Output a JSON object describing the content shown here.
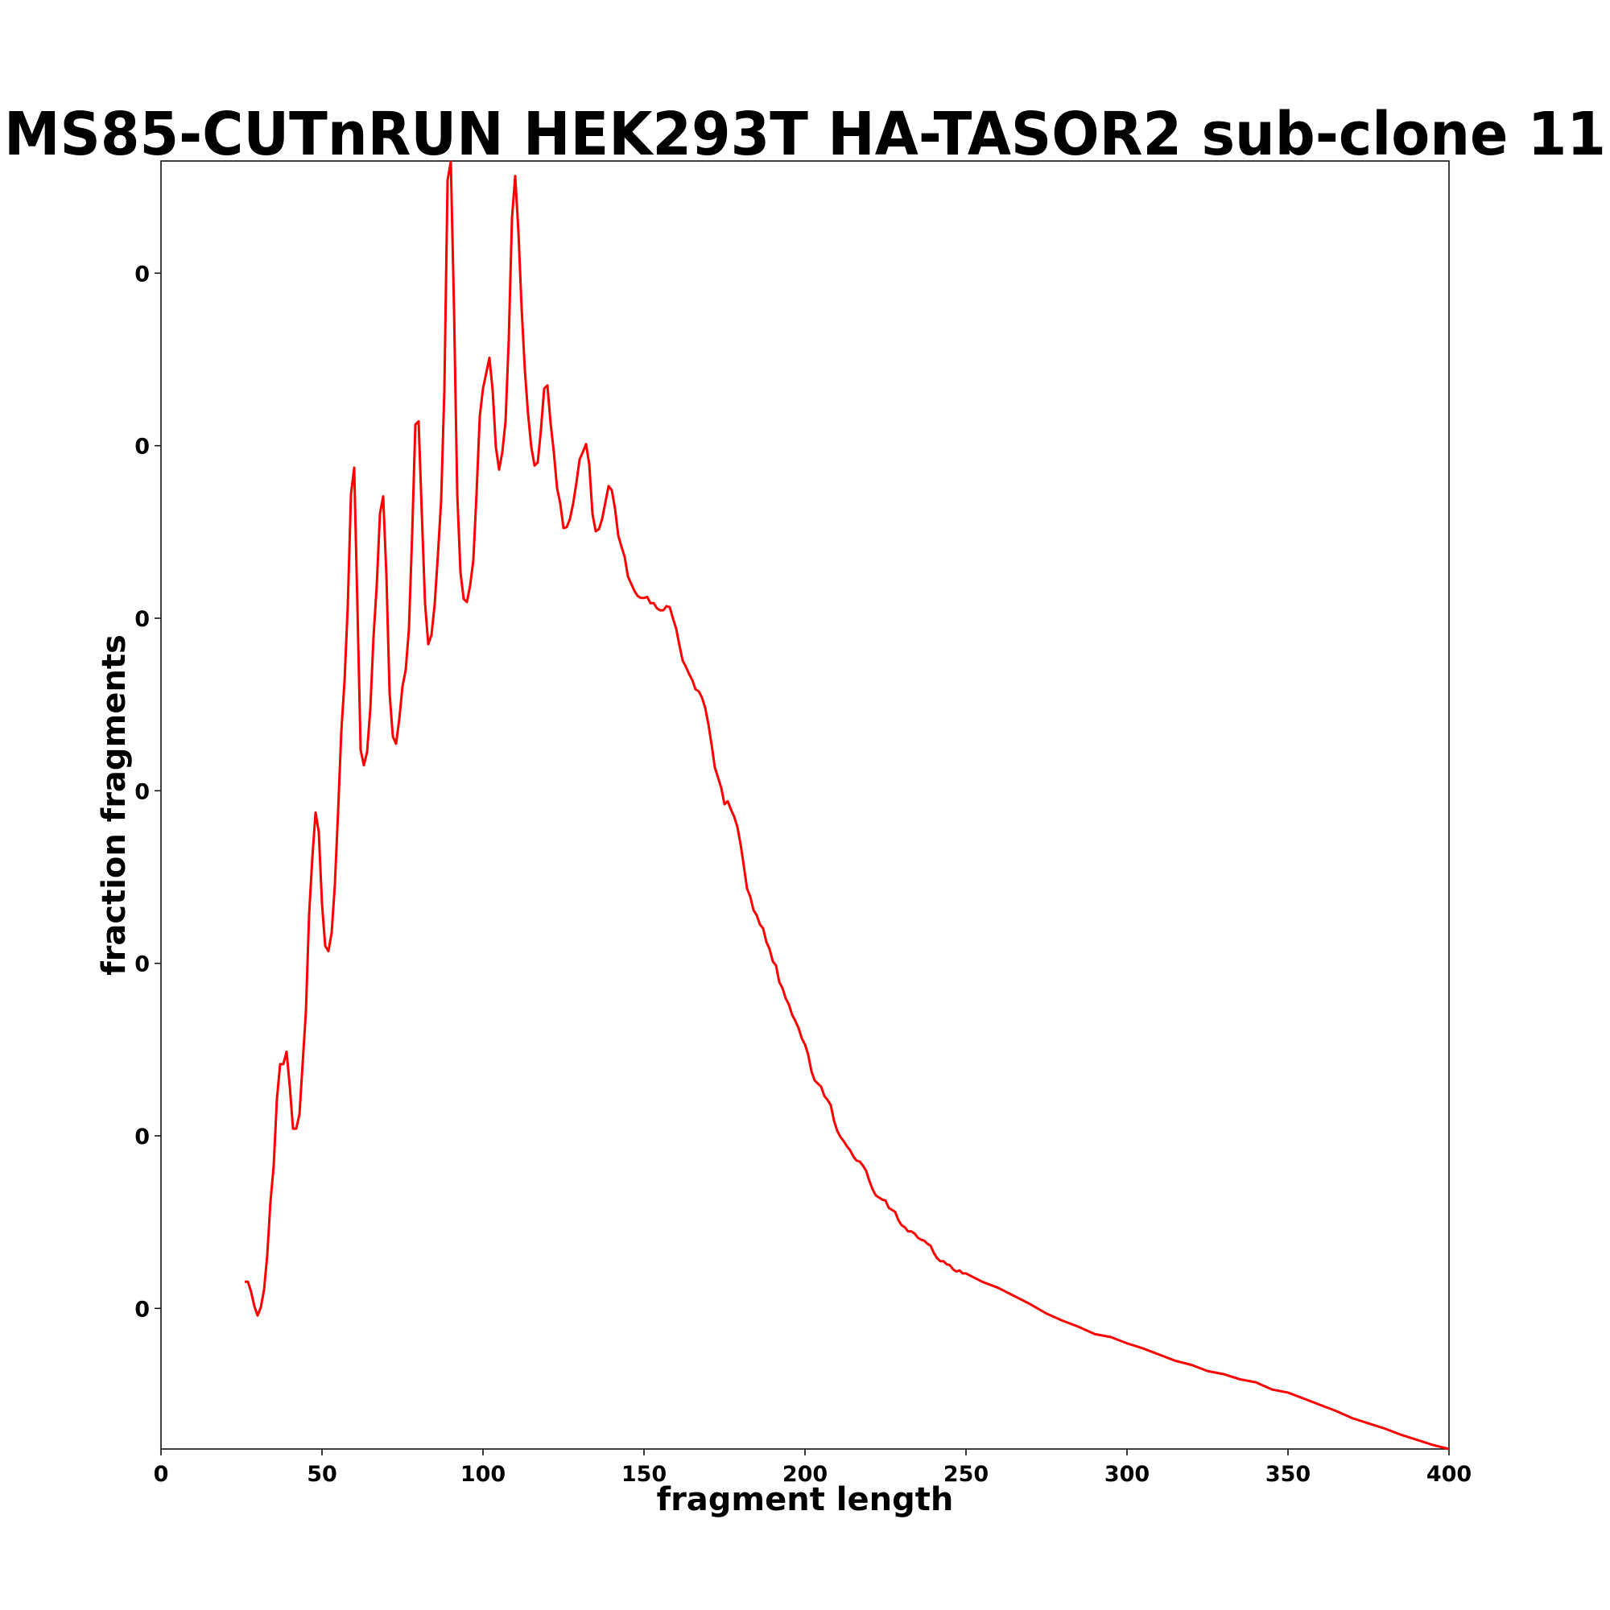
{
  "chart_data": {
    "type": "line",
    "title": "MS85-CUTnRUN HEK293T HA-TASOR2 sub-clone 11",
    "xlabel": "fragment length",
    "ylabel": "fraction fragments",
    "xlim": [
      0,
      400
    ],
    "xticks": [
      0,
      50,
      100,
      150,
      200,
      250,
      300,
      350,
      400
    ],
    "ylim": [
      -0.00163,
      0.0133
    ],
    "yticks": [
      {
        "value": 0,
        "label": "0"
      },
      {
        "value": 0.002,
        "label": "0"
      },
      {
        "value": 0.004,
        "label": "0"
      },
      {
        "value": 0.006,
        "label": "0"
      },
      {
        "value": 0.008,
        "label": "0"
      },
      {
        "value": 0.01,
        "label": "0"
      },
      {
        "value": 0.012,
        "label": "0"
      }
    ],
    "series": [
      {
        "color": "#ff0000",
        "x": [
          26,
          27,
          28,
          29,
          30,
          31,
          32,
          33,
          34,
          35,
          36,
          37,
          38,
          39,
          40,
          41,
          42,
          43,
          44,
          45,
          46,
          47,
          48,
          49,
          50,
          51,
          52,
          53,
          54,
          55,
          56,
          57,
          58,
          59,
          60,
          61,
          62,
          63,
          64,
          65,
          66,
          67,
          68,
          69,
          70,
          71,
          72,
          73,
          74,
          75,
          76,
          77,
          78,
          79,
          80,
          81,
          82,
          83,
          84,
          85,
          86,
          87,
          88,
          89,
          90,
          91,
          92,
          93,
          94,
          95,
          96,
          97,
          98,
          99,
          100,
          101,
          102,
          103,
          104,
          105,
          106,
          107,
          108,
          109,
          110,
          111,
          112,
          113,
          114,
          115,
          116,
          117,
          118,
          119,
          120,
          121,
          122,
          123,
          124,
          125,
          126,
          127,
          128,
          129,
          130,
          131,
          132,
          133,
          134,
          135,
          136,
          137,
          138,
          139,
          140,
          141,
          142,
          143,
          144,
          145,
          146,
          147,
          148,
          149,
          150,
          151,
          152,
          153,
          154,
          155,
          156,
          157,
          158,
          159,
          160,
          161,
          162,
          163,
          164,
          165,
          166,
          167,
          168,
          169,
          170,
          171,
          172,
          173,
          174,
          175,
          176,
          177,
          178,
          179,
          180,
          181,
          182,
          183,
          184,
          185,
          186,
          187,
          188,
          189,
          190,
          191,
          192,
          193,
          194,
          195,
          196,
          197,
          198,
          199,
          200,
          201,
          202,
          203,
          204,
          205,
          206,
          207,
          208,
          209,
          210,
          211,
          212,
          213,
          214,
          215,
          216,
          217,
          218,
          219,
          220,
          221,
          222,
          223,
          224,
          225,
          226,
          227,
          228,
          229,
          230,
          231,
          232,
          233,
          234,
          235,
          236,
          237,
          238,
          239,
          240,
          241,
          242,
          243,
          244,
          245,
          246,
          247,
          248,
          249,
          250,
          255,
          260,
          265,
          270,
          275,
          280,
          285,
          290,
          295,
          300,
          305,
          310,
          315,
          320,
          325,
          330,
          335,
          340,
          345,
          350,
          355,
          360,
          365,
          370,
          375,
          380,
          385,
          390,
          395,
          400
        ],
        "values": [
          0.000309,
          0.000309,
          0.00019,
          2.4e-05,
          -8.3e-05,
          1.2e-05,
          0.000214,
          0.000619,
          0.001238,
          0.001654,
          0.002428,
          0.002832,
          0.002832,
          0.002975,
          0.00257,
          0.002083,
          0.002083,
          0.002249,
          0.002844,
          0.003439,
          0.00457,
          0.005224,
          0.005748,
          0.005522,
          0.004689,
          0.004201,
          0.004141,
          0.004355,
          0.004915,
          0.00576,
          0.006688,
          0.007271,
          0.00814,
          0.009437,
          0.009746,
          0.00814,
          0.006474,
          0.006295,
          0.00645,
          0.00695,
          0.007783,
          0.008378,
          0.009211,
          0.009413,
          0.008497,
          0.007128,
          0.006628,
          0.006545,
          0.006831,
          0.007211,
          0.007402,
          0.007878,
          0.008973,
          0.010246,
          0.010282,
          0.009211,
          0.008175,
          0.007699,
          0.007806,
          0.008163,
          0.008735,
          0.009365,
          0.010639,
          0.013078,
          0.013292,
          0.011591,
          0.009449,
          0.008532,
          0.008223,
          0.008187,
          0.008378,
          0.008675,
          0.009449,
          0.010341,
          0.010662,
          0.010841,
          0.011019,
          0.010639,
          0.009984,
          0.009722,
          0.009925,
          0.010282,
          0.011234,
          0.012638,
          0.013126,
          0.012483,
          0.011591,
          0.010877,
          0.010365,
          0.009984,
          0.00977,
          0.009806,
          0.010186,
          0.010662,
          0.010698,
          0.010258,
          0.009925,
          0.009508,
          0.00933,
          0.009044,
          0.009056,
          0.009151,
          0.00933,
          0.009568,
          0.009841,
          0.009925,
          0.01002,
          0.009782,
          0.009211,
          0.009008,
          0.009032,
          0.009151,
          0.009342,
          0.009532,
          0.009484,
          0.00927,
          0.008961,
          0.00883,
          0.008711,
          0.008485,
          0.008401,
          0.008318,
          0.008259,
          0.008235,
          0.008235,
          0.008247,
          0.008175,
          0.008175,
          0.008116,
          0.008092,
          0.008092,
          0.00814,
          0.008128,
          0.007997,
          0.007878,
          0.007687,
          0.007509,
          0.007438,
          0.007354,
          0.007283,
          0.007176,
          0.007152,
          0.007081,
          0.006962,
          0.006771,
          0.006533,
          0.006271,
          0.006152,
          0.006033,
          0.005843,
          0.005879,
          0.005783,
          0.0057,
          0.005581,
          0.005379,
          0.005129,
          0.004867,
          0.004772,
          0.004617,
          0.004558,
          0.004451,
          0.004403,
          0.004248,
          0.004165,
          0.004022,
          0.003975,
          0.003784,
          0.003713,
          0.003594,
          0.003522,
          0.003403,
          0.003332,
          0.003249,
          0.00313,
          0.003058,
          0.002939,
          0.002749,
          0.002642,
          0.002606,
          0.00257,
          0.002463,
          0.002416,
          0.002356,
          0.002178,
          0.002059,
          0.001987,
          0.00194,
          0.00188,
          0.001833,
          0.001761,
          0.001714,
          0.001702,
          0.001654,
          0.001595,
          0.001476,
          0.00138,
          0.001309,
          0.001285,
          0.001261,
          0.00125,
          0.001166,
          0.001142,
          0.001119,
          0.001023,
          0.000964,
          0.00094,
          0.000893,
          0.000893,
          0.000869,
          0.000821,
          0.000797,
          0.000785,
          0.00075,
          0.000726,
          0.000643,
          0.000583,
          0.000547,
          0.000547,
          0.000512,
          0.0005,
          0.000452,
          0.000428,
          0.00044,
          0.000405,
          0.000405,
          0.000309,
          0.000238,
          0.000143,
          4.8e-05,
          -6e-05,
          -0.000143,
          -0.000214,
          -0.000298,
          -0.000333,
          -0.000405,
          -0.000464,
          -0.000536,
          -0.000607,
          -0.000655,
          -0.000726,
          -0.000762,
          -0.000821,
          -0.000857,
          -0.00094,
          -0.000976,
          -0.001047,
          -0.001119,
          -0.00119,
          -0.001273,
          -0.001333,
          -0.001392,
          -0.001464,
          -0.001523,
          -0.001583,
          -0.00163
        ]
      }
    ]
  }
}
